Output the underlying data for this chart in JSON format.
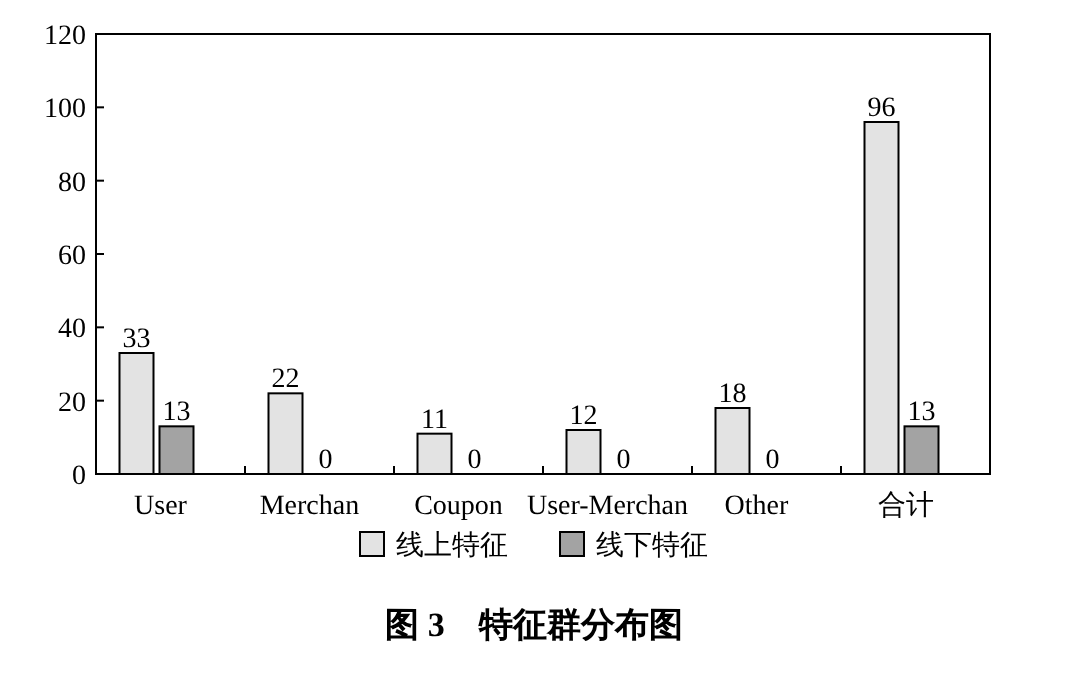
{
  "chart_data": {
    "type": "bar",
    "title": "图 3　特征群分布图",
    "categories": [
      "User",
      "Merchan",
      "Coupon",
      "User-Merchan",
      "Other",
      "合计"
    ],
    "series": [
      {
        "name": "线上特征",
        "color": "#e3e3e3",
        "values": [
          33,
          22,
          11,
          12,
          18,
          96
        ]
      },
      {
        "name": "线下特征",
        "color": "#a3a3a3",
        "values": [
          13,
          0,
          0,
          0,
          0,
          13
        ]
      }
    ],
    "ylim": [
      0,
      120
    ],
    "yticks": [
      0,
      20,
      40,
      60,
      80,
      100,
      120
    ],
    "data_labels": true,
    "legend": "bottom"
  }
}
